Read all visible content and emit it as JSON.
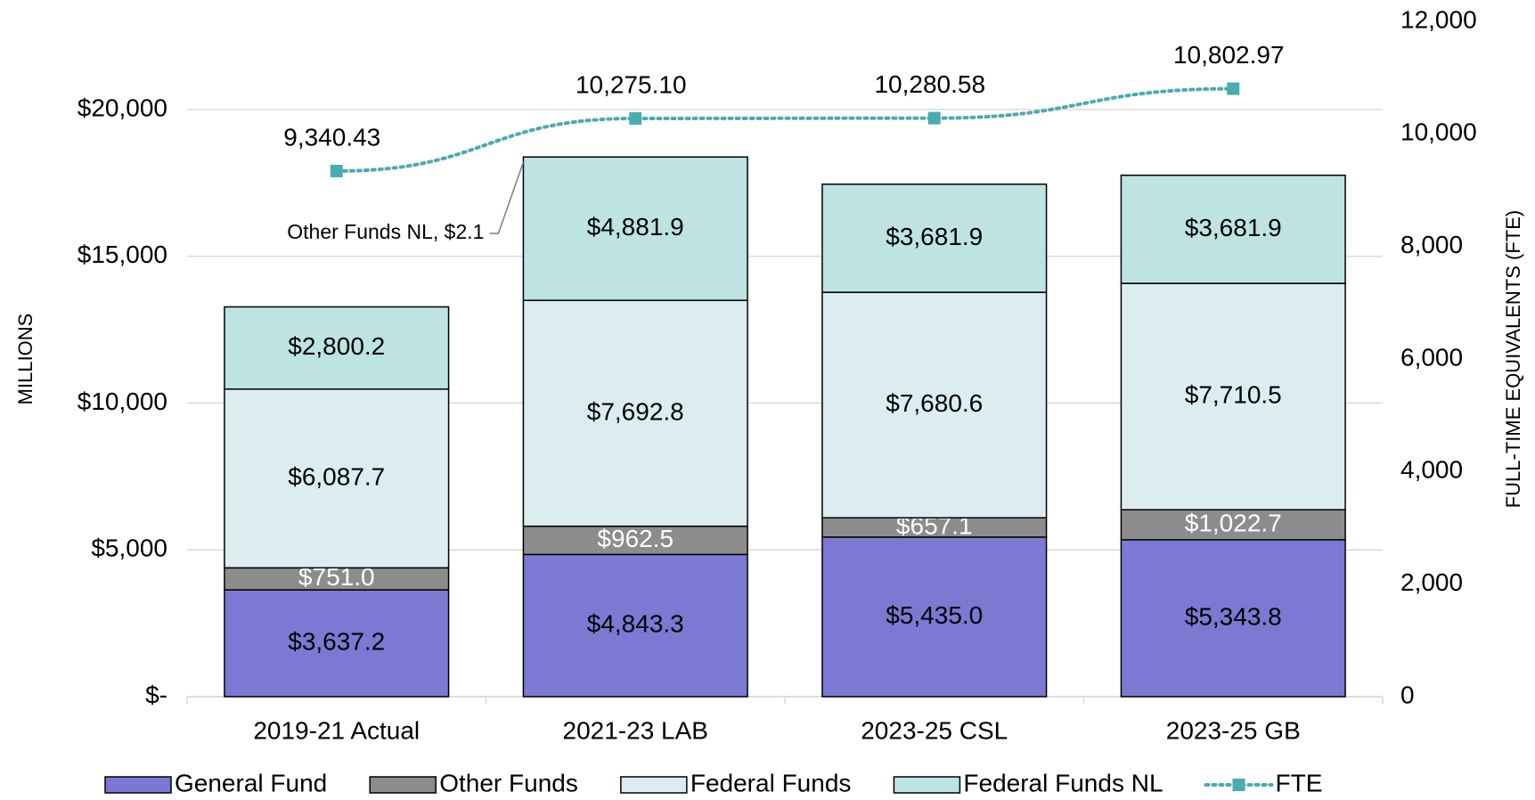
{
  "chart_data": {
    "type": "stacked_bar_line",
    "y_label": "MILLIONS",
    "y2_label": "FULL-TIME EQUIVALENTS (FTE)",
    "categories": [
      "2019-21 Actual",
      "2021-23 LAB",
      "2023-25 CSL",
      "2023-25 GB"
    ],
    "series": [
      {
        "name": "General Fund",
        "type": "bar",
        "color": "#7b79d2",
        "label_color": "#000000",
        "values": [
          3637.2,
          4843.3,
          5435.0,
          5343.8
        ],
        "value_labels": [
          "$3,637.2",
          "$4,843.3",
          "$5,435.0",
          "$5,343.8"
        ]
      },
      {
        "name": "Other Funds",
        "type": "bar",
        "color": "#8c8c8c",
        "label_color": "#ffffff",
        "values": [
          751.0,
          962.5,
          657.1,
          1022.7
        ],
        "value_labels": [
          "$751.0",
          "$962.5",
          "$657.1",
          "$1,022.7"
        ]
      },
      {
        "name": "Federal Funds",
        "type": "bar",
        "color": "#dcedef",
        "label_color": "#000000",
        "values": [
          6087.7,
          7692.8,
          7680.6,
          7710.5
        ],
        "value_labels": [
          "$6,087.7",
          "$7,692.8",
          "$7,680.6",
          "$7,710.5"
        ]
      },
      {
        "name": "Federal Funds NL",
        "type": "bar",
        "color": "#bde3e3",
        "label_color": "#000000",
        "values": [
          2800.2,
          4881.9,
          3681.9,
          3681.9
        ],
        "value_labels": [
          "$2,800.2",
          "$4,881.9",
          "$3,681.9",
          "$3,681.9"
        ]
      },
      {
        "name": "FTE",
        "type": "line",
        "axis": "y2",
        "color": "#4aabb0",
        "values": [
          9340.43,
          10275.1,
          10280.58,
          10802.97
        ],
        "value_labels": [
          "9,340.43",
          "10,275.10",
          "10,280.58",
          "10,802.97"
        ]
      }
    ],
    "annotations": [
      {
        "text": "Other Funds NL, $2.1"
      }
    ],
    "ylim": [
      0,
      23000
    ],
    "yticks": [
      {
        "value": 0,
        "label": "$-"
      },
      {
        "value": 5000,
        "label": "$5,000"
      },
      {
        "value": 10000,
        "label": "$10,000"
      },
      {
        "value": 15000,
        "label": "$15,000"
      },
      {
        "value": 20000,
        "label": "$20,000"
      }
    ],
    "y2lim": [
      0,
      12000
    ],
    "y2ticks": [
      0,
      {
        "value": 2000,
        "label": "2,000"
      },
      {
        "value": 4000,
        "label": "4,000"
      },
      {
        "value": 6000,
        "label": "6,000"
      },
      {
        "value": 8000,
        "label": "8,000"
      },
      {
        "value": 10000,
        "label": "10,000"
      },
      {
        "value": 12000,
        "label": "12,000"
      }
    ],
    "grid": true,
    "legend": "bottom"
  }
}
